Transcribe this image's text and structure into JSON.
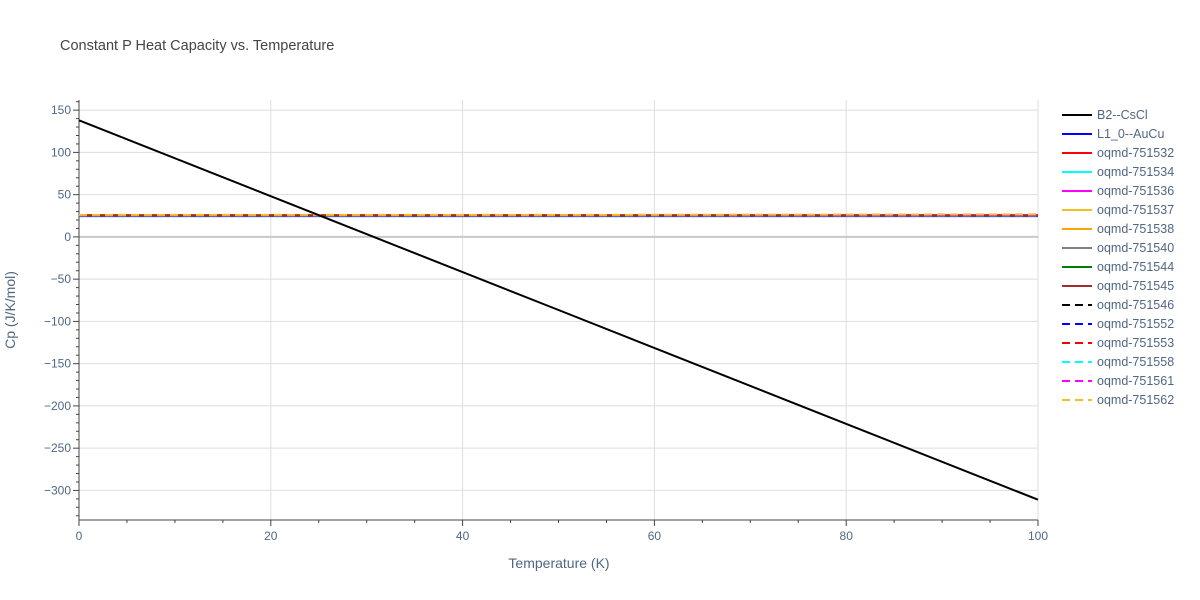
{
  "chart_data": {
    "type": "line",
    "title": "Constant P Heat Capacity vs. Temperature",
    "xlabel": "Temperature (K)",
    "ylabel": "Cp (J/K/mol)",
    "xlim": [
      0,
      100
    ],
    "ylim": [
      -335,
      162
    ],
    "x_ticks": [
      0,
      20,
      40,
      60,
      80,
      100
    ],
    "x_tick_labels": [
      "0",
      "20",
      "40",
      "60",
      "80",
      "100"
    ],
    "y_ticks": [
      150,
      100,
      50,
      0,
      -50,
      -100,
      -150,
      -200,
      -250,
      -300
    ],
    "y_tick_labels": [
      "150",
      "100",
      "50",
      "0",
      "−50",
      "−100",
      "−150",
      "−200",
      "−250",
      "−300"
    ],
    "grid": true,
    "legend_position": "right",
    "x": [
      0,
      25,
      50,
      75,
      100
    ],
    "series": [
      {
        "name": "B2--CsCl",
        "color": "#000000",
        "dash": "solid",
        "values": [
          138,
          25.7,
          -86.5,
          -198.8,
          -311
        ]
      },
      {
        "name": "L1_0--AuCu",
        "color": "#0000ff",
        "dash": "solid",
        "values": [
          24.6,
          24.6,
          24.6,
          24.6,
          24.6
        ]
      },
      {
        "name": "oqmd-751532",
        "color": "#ff0000",
        "dash": "solid",
        "values": [
          25.0,
          25.0,
          25.0,
          25.0,
          25.0
        ]
      },
      {
        "name": "oqmd-751534",
        "color": "#00ffff",
        "dash": "solid",
        "values": [
          25.2,
          25.2,
          25.2,
          25.2,
          25.2
        ]
      },
      {
        "name": "oqmd-751536",
        "color": "#ff00ff",
        "dash": "solid",
        "values": [
          25.4,
          25.4,
          25.4,
          25.4,
          25.4
        ]
      },
      {
        "name": "oqmd-751537",
        "color": "#f0c020",
        "dash": "solid",
        "values": [
          25.6,
          25.6,
          25.6,
          25.6,
          25.6
        ]
      },
      {
        "name": "oqmd-751538",
        "color": "#ffa500",
        "dash": "solid",
        "values": [
          25.8,
          25.8,
          25.8,
          25.8,
          25.8
        ]
      },
      {
        "name": "oqmd-751540",
        "color": "#808080",
        "dash": "solid",
        "values": [
          25.5,
          25.5,
          25.5,
          25.5,
          25.5
        ]
      },
      {
        "name": "oqmd-751544",
        "color": "#008000",
        "dash": "solid",
        "values": [
          25.3,
          25.3,
          25.3,
          25.3,
          25.3
        ]
      },
      {
        "name": "oqmd-751545",
        "color": "#a52a2a",
        "dash": "solid",
        "values": [
          25.7,
          25.7,
          25.7,
          25.7,
          25.7
        ]
      },
      {
        "name": "oqmd-751546",
        "color": "#000000",
        "dash": "dash",
        "values": [
          25.6,
          25.6,
          25.6,
          25.6,
          25.6
        ]
      },
      {
        "name": "oqmd-751552",
        "color": "#0000ff",
        "dash": "dash",
        "values": [
          25.4,
          25.4,
          25.4,
          25.4,
          25.4
        ]
      },
      {
        "name": "oqmd-751553",
        "color": "#ff0000",
        "dash": "dash",
        "values": [
          25.6,
          25.6,
          25.6,
          25.6,
          25.6
        ]
      },
      {
        "name": "oqmd-751558",
        "color": "#00ffff",
        "dash": "dash",
        "values": [
          25.5,
          25.5,
          25.5,
          25.5,
          25.5
        ]
      },
      {
        "name": "oqmd-751561",
        "color": "#ff00ff",
        "dash": "dash",
        "values": [
          25.8,
          25.8,
          25.8,
          25.8,
          25.8
        ]
      },
      {
        "name": "oqmd-751562",
        "color": "#f0c020",
        "dash": "dash",
        "values": [
          26.0,
          26.0,
          26.0,
          26.4,
          26.8
        ]
      }
    ]
  }
}
